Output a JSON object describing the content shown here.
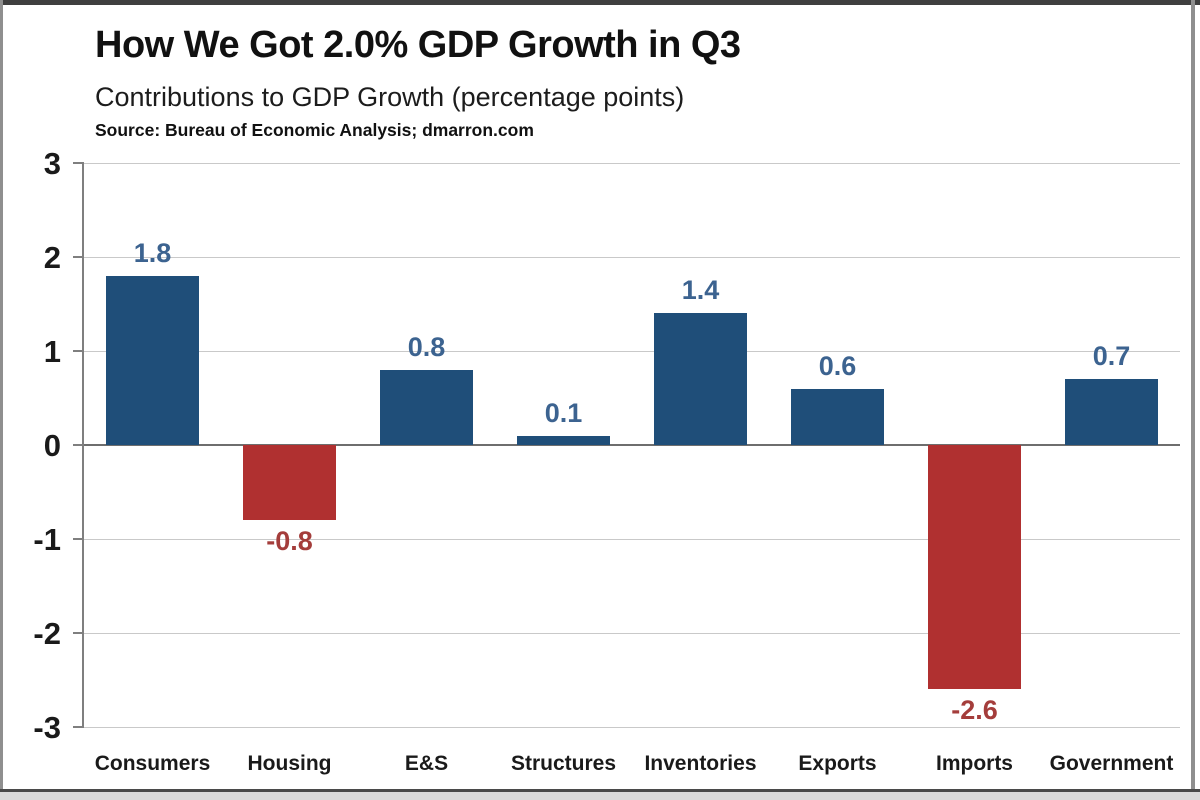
{
  "header": {
    "title": "How We Got 2.0% GDP Growth in Q3",
    "subtitle": "Contributions to GDP Growth (percentage points)",
    "source": "Source: Bureau of Economic Analysis; dmarron.com"
  },
  "chart_data": {
    "type": "bar",
    "title": "How We Got 2.0% GDP Growth in Q3",
    "subtitle": "Contributions to GDP Growth (percentage points)",
    "source": "Source: Bureau of Economic Analysis; dmarron.com",
    "categories": [
      "Consumers",
      "Housing",
      "E&S",
      "Structures",
      "Inventories",
      "Exports",
      "Imports",
      "Government"
    ],
    "values": [
      1.8,
      -0.8,
      0.8,
      0.1,
      1.4,
      0.6,
      -2.6,
      0.7
    ],
    "data_labels": [
      "1.8",
      "-0.8",
      "0.8",
      "0.1",
      "1.4",
      "0.6",
      "-2.6",
      "0.7"
    ],
    "xlabel": "",
    "ylabel": "",
    "ylim": [
      -3,
      3
    ],
    "yticks": [
      3,
      2,
      1,
      0,
      -1,
      -2,
      -3
    ],
    "grid": true,
    "legend": "none",
    "colors": {
      "positive_bar": "#1f4e79",
      "negative_bar": "#b03030",
      "positive_label": "#3c6390",
      "negative_label": "#a43d3b",
      "gridline": "#c9c9c9",
      "zero_line": "#6e6e6e",
      "axis": "#7f7f7f"
    }
  }
}
